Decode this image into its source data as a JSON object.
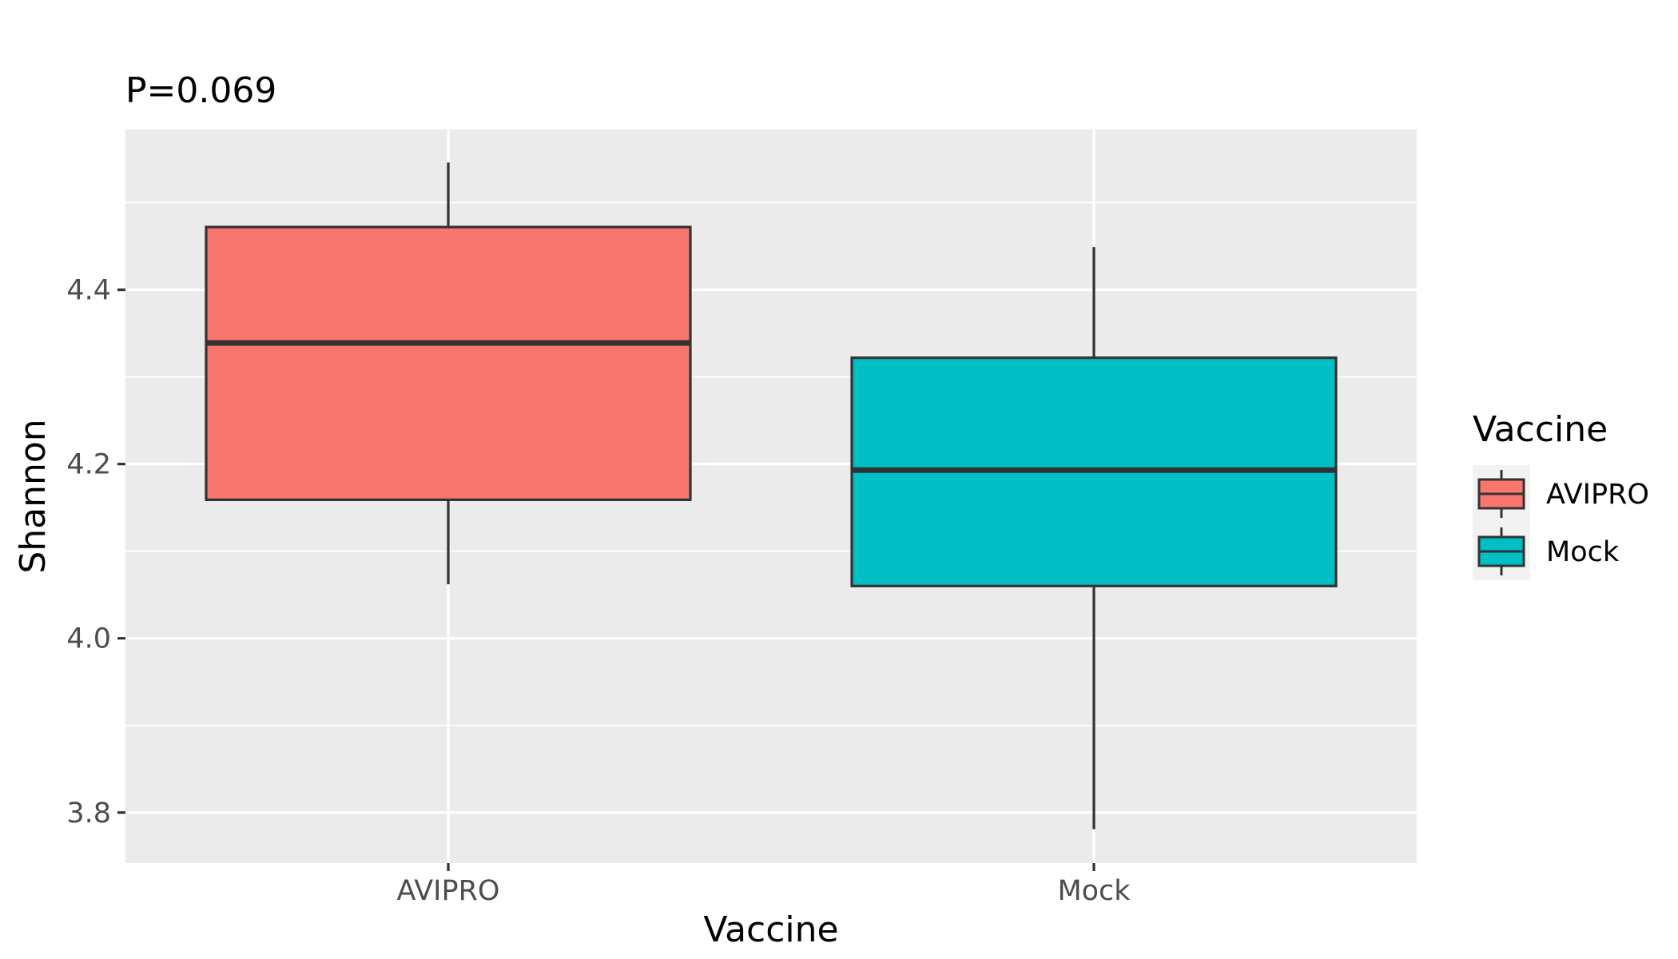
{
  "chart_data": {
    "type": "boxplot",
    "title": "P=0.069",
    "xlabel": "Vaccine",
    "ylabel": "Shannon",
    "categories": [
      "AVIPRO",
      "Mock"
    ],
    "boxes": [
      {
        "category": "AVIPRO",
        "whisker_low": 4.062,
        "q1": 4.159,
        "median": 4.339,
        "q3": 4.472,
        "whisker_high": 4.546,
        "fill": "#F8766D"
      },
      {
        "category": "Mock",
        "whisker_low": 3.781,
        "q1": 4.06,
        "median": 4.193,
        "q3": 4.322,
        "whisker_high": 4.449,
        "fill": "#00BFC4"
      }
    ],
    "ylim": [
      3.742,
      4.584
    ],
    "yticks": [
      {
        "value": 3.8,
        "label": "3.8"
      },
      {
        "value": 4.0,
        "label": "4.0"
      },
      {
        "value": 4.2,
        "label": "4.2"
      },
      {
        "value": 4.4,
        "label": "4.4"
      }
    ],
    "yminor": [
      3.9,
      4.1,
      4.3,
      4.5
    ],
    "grid": true,
    "panel_background": "#EBEBEB",
    "grid_color": "#FFFFFF",
    "outline_color": "#333333",
    "legend": {
      "title": "Vaccine",
      "position": "right",
      "entries": [
        {
          "label": "AVIPRO",
          "fill": "#F8766D"
        },
        {
          "label": "Mock",
          "fill": "#00BFC4"
        }
      ]
    }
  }
}
